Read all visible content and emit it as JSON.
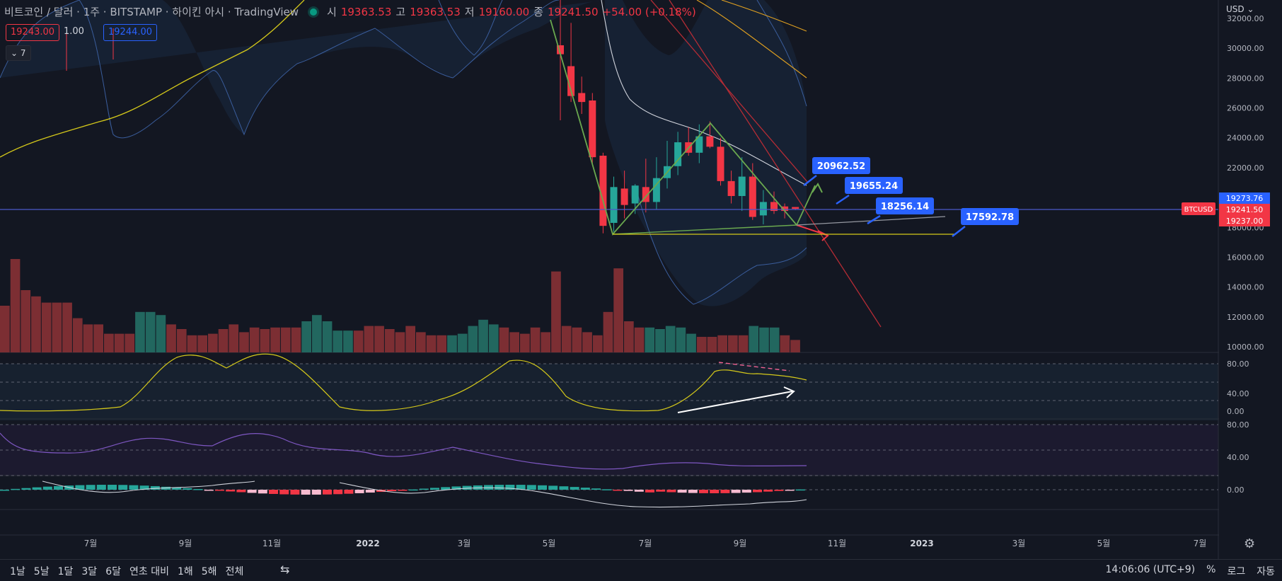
{
  "header": {
    "title": "비트코인 / 달러 · 1주 · BITSTAMP · 하이킨 아시 · TradingView",
    "open_label": "시",
    "open": "19363.53",
    "high_label": "고",
    "high": "19363.53",
    "low_label": "저",
    "low": "19160.00",
    "close_label": "종",
    "close": "19241.50",
    "change": "+54.00 (+0.18%)",
    "sell_price": "19243.00",
    "spread": "1.00",
    "buy_price": "19244.00",
    "indicator_count": "⌄ 7"
  },
  "currency": "USD",
  "chart_data": {
    "type": "candlestick",
    "symbol_tag": "BTCUSD",
    "price_axis": [
      "32000.00",
      "30000.00",
      "28000.00",
      "26000.00",
      "24000.00",
      "22000.00",
      "20000.00",
      "18000.00",
      "16000.00",
      "14000.00",
      "12000.00",
      "10000.00"
    ],
    "price_range": [
      9800,
      33200
    ],
    "rsi_axis": [
      "80.00",
      "40.00",
      "0.00"
    ],
    "stoch_axis": [
      "80.00",
      "40.00"
    ],
    "macd_axis": [
      "0.00"
    ],
    "price_tags": [
      {
        "value": 19273.76,
        "label": "19273.76",
        "color": "#2962ff"
      },
      {
        "value": 19241.5,
        "label": "19241.50",
        "color": "#f23645"
      },
      {
        "value": 19237.0,
        "label": "19237.00",
        "color": "#f23645"
      }
    ],
    "x_labels": [
      {
        "label": "7월",
        "bold": false
      },
      {
        "label": "9월",
        "bold": false
      },
      {
        "label": "11월",
        "bold": false
      },
      {
        "label": "2022",
        "bold": true
      },
      {
        "label": "3월",
        "bold": false
      },
      {
        "label": "5월",
        "bold": false
      },
      {
        "label": "7월",
        "bold": false
      },
      {
        "label": "9월",
        "bold": false
      },
      {
        "label": "11월",
        "bold": false
      },
      {
        "label": "2023",
        "bold": true
      },
      {
        "label": "3월",
        "bold": false
      },
      {
        "label": "5월",
        "bold": false
      },
      {
        "label": "7월",
        "bold": false
      }
    ],
    "candles": [
      {
        "o": 30200,
        "h": 31600,
        "l": 27800,
        "c": 29600
      },
      {
        "o": 28800,
        "h": 31700,
        "l": 26400,
        "c": 26800
      },
      {
        "o": 27000,
        "h": 28100,
        "l": 25600,
        "c": 26400
      },
      {
        "o": 26500,
        "h": 27000,
        "l": 22300,
        "c": 22700
      },
      {
        "o": 22800,
        "h": 23000,
        "l": 17600,
        "c": 18100
      },
      {
        "o": 18300,
        "h": 21400,
        "l": 17700,
        "c": 20700
      },
      {
        "o": 20600,
        "h": 21800,
        "l": 18600,
        "c": 19500
      },
      {
        "o": 19600,
        "h": 20900,
        "l": 18900,
        "c": 20800
      },
      {
        "o": 20700,
        "h": 22600,
        "l": 19000,
        "c": 19700
      },
      {
        "o": 19700,
        "h": 22700,
        "l": 19200,
        "c": 21300
      },
      {
        "o": 21300,
        "h": 23800,
        "l": 20600,
        "c": 22100
      },
      {
        "o": 22100,
        "h": 24400,
        "l": 21500,
        "c": 23700
      },
      {
        "o": 23700,
        "h": 24700,
        "l": 22800,
        "c": 23000
      },
      {
        "o": 23000,
        "h": 24900,
        "l": 22300,
        "c": 24100
      },
      {
        "o": 24100,
        "h": 25100,
        "l": 23300,
        "c": 23400
      },
      {
        "o": 23400,
        "h": 24000,
        "l": 20800,
        "c": 21100
      },
      {
        "o": 21100,
        "h": 21800,
        "l": 19600,
        "c": 20100
      },
      {
        "o": 20100,
        "h": 22700,
        "l": 19100,
        "c": 21400
      },
      {
        "o": 21400,
        "h": 22300,
        "l": 18500,
        "c": 18700
      },
      {
        "o": 18800,
        "h": 20500,
        "l": 18200,
        "c": 19700
      },
      {
        "o": 19700,
        "h": 20400,
        "l": 18900,
        "c": 19100
      },
      {
        "o": 19400,
        "h": 19600,
        "l": 18600,
        "c": 19100
      },
      {
        "o": 19363.53,
        "h": 19363.53,
        "l": 19160,
        "c": 19241.5
      }
    ],
    "volume": [
      3,
      6,
      4,
      3.6,
      3.2,
      3.2,
      3.2,
      2.2,
      1.8,
      1.8,
      1.2,
      1.2,
      1.2,
      2.6,
      2.6,
      2.4,
      1.8,
      1.5,
      1.1,
      1.1,
      1.2,
      1.5,
      1.8,
      1.3,
      1.6,
      1.5,
      1.6,
      1.6,
      1.6,
      2,
      2.4,
      2,
      1.4,
      1.4,
      1.4,
      1.7,
      1.7,
      1.5,
      1.3,
      1.7,
      1.3,
      1.1,
      1.1,
      1.1,
      1.2,
      1.7,
      2.1,
      1.8,
      1.6,
      1.3,
      1.2,
      1.6,
      1.3,
      5.2,
      1.7,
      1.6,
      1.3,
      1.1,
      2.6,
      5.4,
      2,
      1.6,
      1.6,
      1.5,
      1.7,
      1.6,
      1.2,
      1,
      1,
      1.1,
      1.1,
      1.1,
      1.7,
      1.6,
      1.6,
      1.1,
      0.8
    ],
    "annotations": [
      {
        "label": "20962.52",
        "value": 20962.52
      },
      {
        "label": "19655.24",
        "value": 19655.24
      },
      {
        "label": "18256.14",
        "value": 18256.14
      },
      {
        "label": "17592.78",
        "value": 17592.78
      }
    ],
    "colors": {
      "up": "#26a69a",
      "down": "#f23645",
      "vol_up": "#22675f",
      "vol_down": "#7c2e33",
      "annotation": "#2962ff",
      "level": "#4b59c9"
    }
  },
  "toolbar": {
    "ranges": [
      "1날",
      "5날",
      "1달",
      "3달",
      "6달",
      "연초 대비",
      "1해",
      "5해",
      "전체"
    ],
    "time": "14:06:06 (UTC+9)",
    "percent": "%",
    "log": "로그",
    "auto": "자동"
  }
}
